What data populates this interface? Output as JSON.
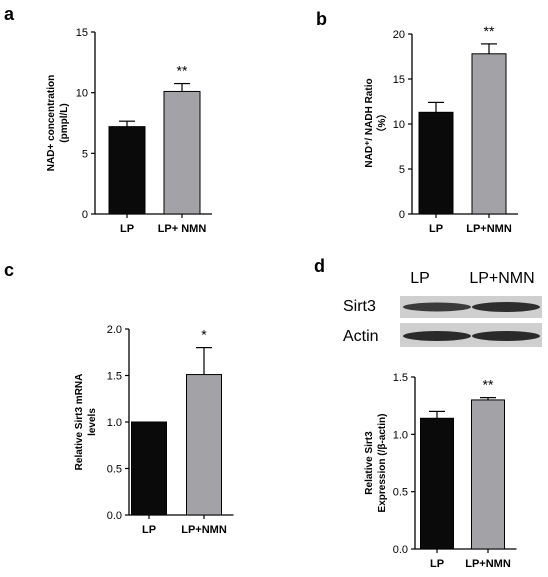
{
  "panels": [
    {
      "letter": "a"
    },
    {
      "letter": "b"
    },
    {
      "letter": "c"
    },
    {
      "letter": "d"
    }
  ],
  "western_blot": {
    "lanes": [
      "LP",
      "LP+NMN"
    ],
    "rows": [
      "Sirt3",
      "Actin"
    ]
  },
  "chart_data": [
    {
      "type": "bar",
      "categories": [
        "LP",
        "LP+ NMN"
      ],
      "values": [
        7.2,
        10.1
      ],
      "errors": [
        0.45,
        0.65
      ],
      "colors": [
        "#0a0a0a",
        "#a3a3a7"
      ],
      "significance": [
        "",
        "**"
      ],
      "ylabel_lines": [
        "NAD+ concentration",
        "(pmpl/L)"
      ],
      "ylim": [
        0,
        15
      ],
      "yticks": [
        0,
        5,
        10,
        15
      ],
      "ytick_labels": [
        "0",
        "5",
        "10",
        "15"
      ]
    },
    {
      "type": "bar",
      "categories": [
        "LP",
        "LP+NMN"
      ],
      "values": [
        11.3,
        17.8
      ],
      "errors": [
        1.1,
        1.1
      ],
      "colors": [
        "#0a0a0a",
        "#a3a3a7"
      ],
      "significance": [
        "",
        "**"
      ],
      "ylabel_lines": [
        "NAD⁺/ NADH Ratio",
        "（%）"
      ],
      "ylim": [
        0,
        20
      ],
      "yticks": [
        0,
        5,
        10,
        15,
        20
      ],
      "ytick_labels": [
        "0",
        "5",
        "10",
        "15",
        "20"
      ]
    },
    {
      "type": "bar",
      "categories": [
        "LP",
        "LP+NMN"
      ],
      "values": [
        1.0,
        1.51
      ],
      "errors": [
        0,
        0.29
      ],
      "colors": [
        "#0a0a0a",
        "#a3a3a7"
      ],
      "significance": [
        "",
        "*"
      ],
      "ylabel_lines": [
        "Relative Sirt3 mRNA",
        "levels"
      ],
      "ylim": [
        0,
        2.0
      ],
      "yticks": [
        0,
        0.5,
        1.0,
        1.5,
        2.0
      ],
      "ytick_labels": [
        "0.0",
        "0.5",
        "1.0",
        "1.5",
        "2.0"
      ]
    },
    {
      "type": "bar",
      "categories": [
        "LP",
        "LP+NMN"
      ],
      "values": [
        1.14,
        1.3
      ],
      "errors": [
        0.06,
        0.02
      ],
      "colors": [
        "#0a0a0a",
        "#a3a3a7"
      ],
      "significance": [
        "",
        "**"
      ],
      "ylabel_lines": [
        "Relative Sirt3",
        "Expression (/β-actin)"
      ],
      "ylim": [
        0,
        1.5
      ],
      "yticks": [
        0,
        0.5,
        1.0,
        1.5
      ],
      "ytick_labels": [
        "0.0",
        "0.5",
        "1.0",
        "1.5"
      ]
    }
  ]
}
